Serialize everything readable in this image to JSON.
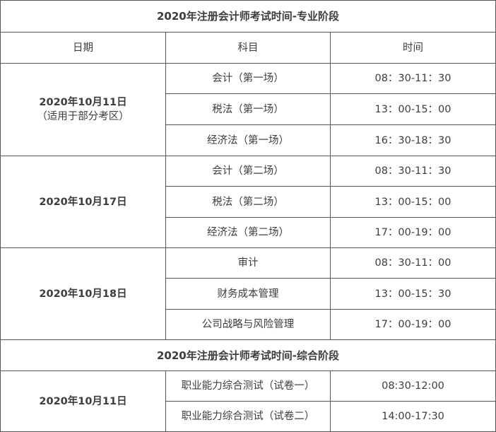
{
  "professional": {
    "title": "2020年注册会计师考试时间-专业阶段",
    "headers": [
      "日期",
      "科目",
      "时间"
    ],
    "groups": [
      {
        "date": "2020年10月11日",
        "note": "（适用于部分考区）",
        "rows": [
          {
            "subject": "会计（第一场）",
            "time": "08：30-11：30"
          },
          {
            "subject": "税法（第一场）",
            "time": "13：00-15：00"
          },
          {
            "subject": "经济法（第一场）",
            "time": "16：30-18：30"
          }
        ]
      },
      {
        "date": "2020年10月17日",
        "rows": [
          {
            "subject": "会计（第二场）",
            "time": "08：30-11：30"
          },
          {
            "subject": "税法（第二场）",
            "time": "13：00-15：00"
          },
          {
            "subject": "经济法（第二场）",
            "time": "17：00-19：00"
          }
        ]
      },
      {
        "date": "2020年10月18日",
        "rows": [
          {
            "subject": "审计",
            "time": "08：30-11：00"
          },
          {
            "subject": "财务成本管理",
            "time": "13：00-15：30"
          },
          {
            "subject": "公司战略与风险管理",
            "time": "17：00-19：00"
          }
        ]
      }
    ]
  },
  "comprehensive": {
    "title": "2020年注册会计师考试时间-综合阶段",
    "date": "2020年10月11日",
    "rows": [
      {
        "subject": "职业能力综合测试（试卷一）",
        "time": "08:30-12:00"
      },
      {
        "subject": "职业能力综合测试（试卷二）",
        "time": "14:00-17:30"
      }
    ]
  }
}
